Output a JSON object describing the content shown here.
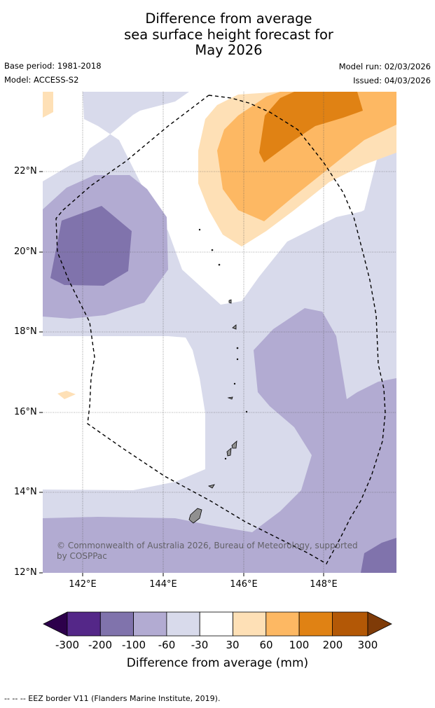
{
  "title": {
    "line1": "Difference from average",
    "line2": "sea surface height forecast for",
    "line3": "May 2026"
  },
  "meta": {
    "base_period": "Base period: 1981-2018",
    "model": "Model: ACCESS-S2",
    "model_run": "Model run: 02/03/2026",
    "issued": "Issued: 04/03/2026"
  },
  "map": {
    "lat_ticks": [
      "22°N",
      "20°N",
      "18°N",
      "16°N",
      "14°N",
      "12°N"
    ],
    "lon_ticks": [
      "142°E",
      "144°E",
      "146°E",
      "148°E"
    ],
    "copyright": "© Commonwealth of Australia 2026, Bureau of Meteorology, supported by COSPPac",
    "colors": {
      "neg300": "#2d004b",
      "neg200": "#542788",
      "neg100": "#8073ac",
      "neg60": "#b2abd2",
      "neg30": "#d8daeb",
      "zero": "#ffffff",
      "pos30": "#fee0b6",
      "pos60": "#fdb863",
      "pos100": "#e08214",
      "pos200": "#b35806",
      "pos300": "#7f3b08",
      "land": "#909090"
    }
  },
  "colorbar": {
    "labels": [
      "-300",
      "-200",
      "-100",
      "-60",
      "-30",
      "30",
      "60",
      "100",
      "200",
      "300"
    ],
    "title": "Difference from average (mm)"
  },
  "footer": "--  --  -- EEZ border V11 (Flanders Marine Institute, 2019)."
}
